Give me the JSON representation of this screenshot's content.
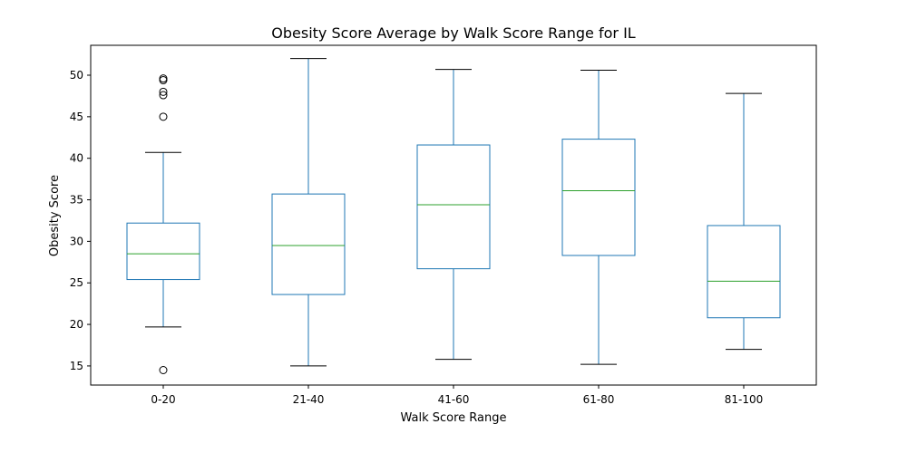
{
  "chart_data": {
    "type": "boxplot",
    "title": "Obesity Score Average by Walk Score Range for IL",
    "xlabel": "Walk Score Range",
    "ylabel": "Obesity Score",
    "ylim": [
      12.7,
      53.6
    ],
    "yticks": [
      15,
      20,
      25,
      30,
      35,
      40,
      45,
      50
    ],
    "grid": false,
    "colors": {
      "box": "#1f77b4",
      "median": "#2ca02c",
      "caps": "#000000",
      "outliers": "#000000",
      "frame": "#000000"
    },
    "categories": [
      "0-20",
      "21-40",
      "41-60",
      "61-80",
      "81-100"
    ],
    "boxes": [
      {
        "category": "0-20",
        "whisker_low": 19.7,
        "q1": 25.4,
        "median": 28.5,
        "q3": 32.2,
        "whisker_high": 40.7,
        "outliers": [
          14.5,
          45.0,
          47.6,
          48.0,
          49.4,
          49.6
        ]
      },
      {
        "category": "21-40",
        "whisker_low": 15.0,
        "q1": 23.6,
        "median": 29.5,
        "q3": 35.7,
        "whisker_high": 52.0,
        "outliers": []
      },
      {
        "category": "41-60",
        "whisker_low": 15.8,
        "q1": 26.7,
        "median": 34.4,
        "q3": 41.6,
        "whisker_high": 50.7,
        "outliers": []
      },
      {
        "category": "61-80",
        "whisker_low": 15.2,
        "q1": 28.3,
        "median": 36.1,
        "q3": 42.3,
        "whisker_high": 50.6,
        "outliers": []
      },
      {
        "category": "81-100",
        "whisker_low": 17.0,
        "q1": 20.8,
        "median": 25.2,
        "q3": 31.9,
        "whisker_high": 47.8,
        "outliers": []
      }
    ]
  }
}
